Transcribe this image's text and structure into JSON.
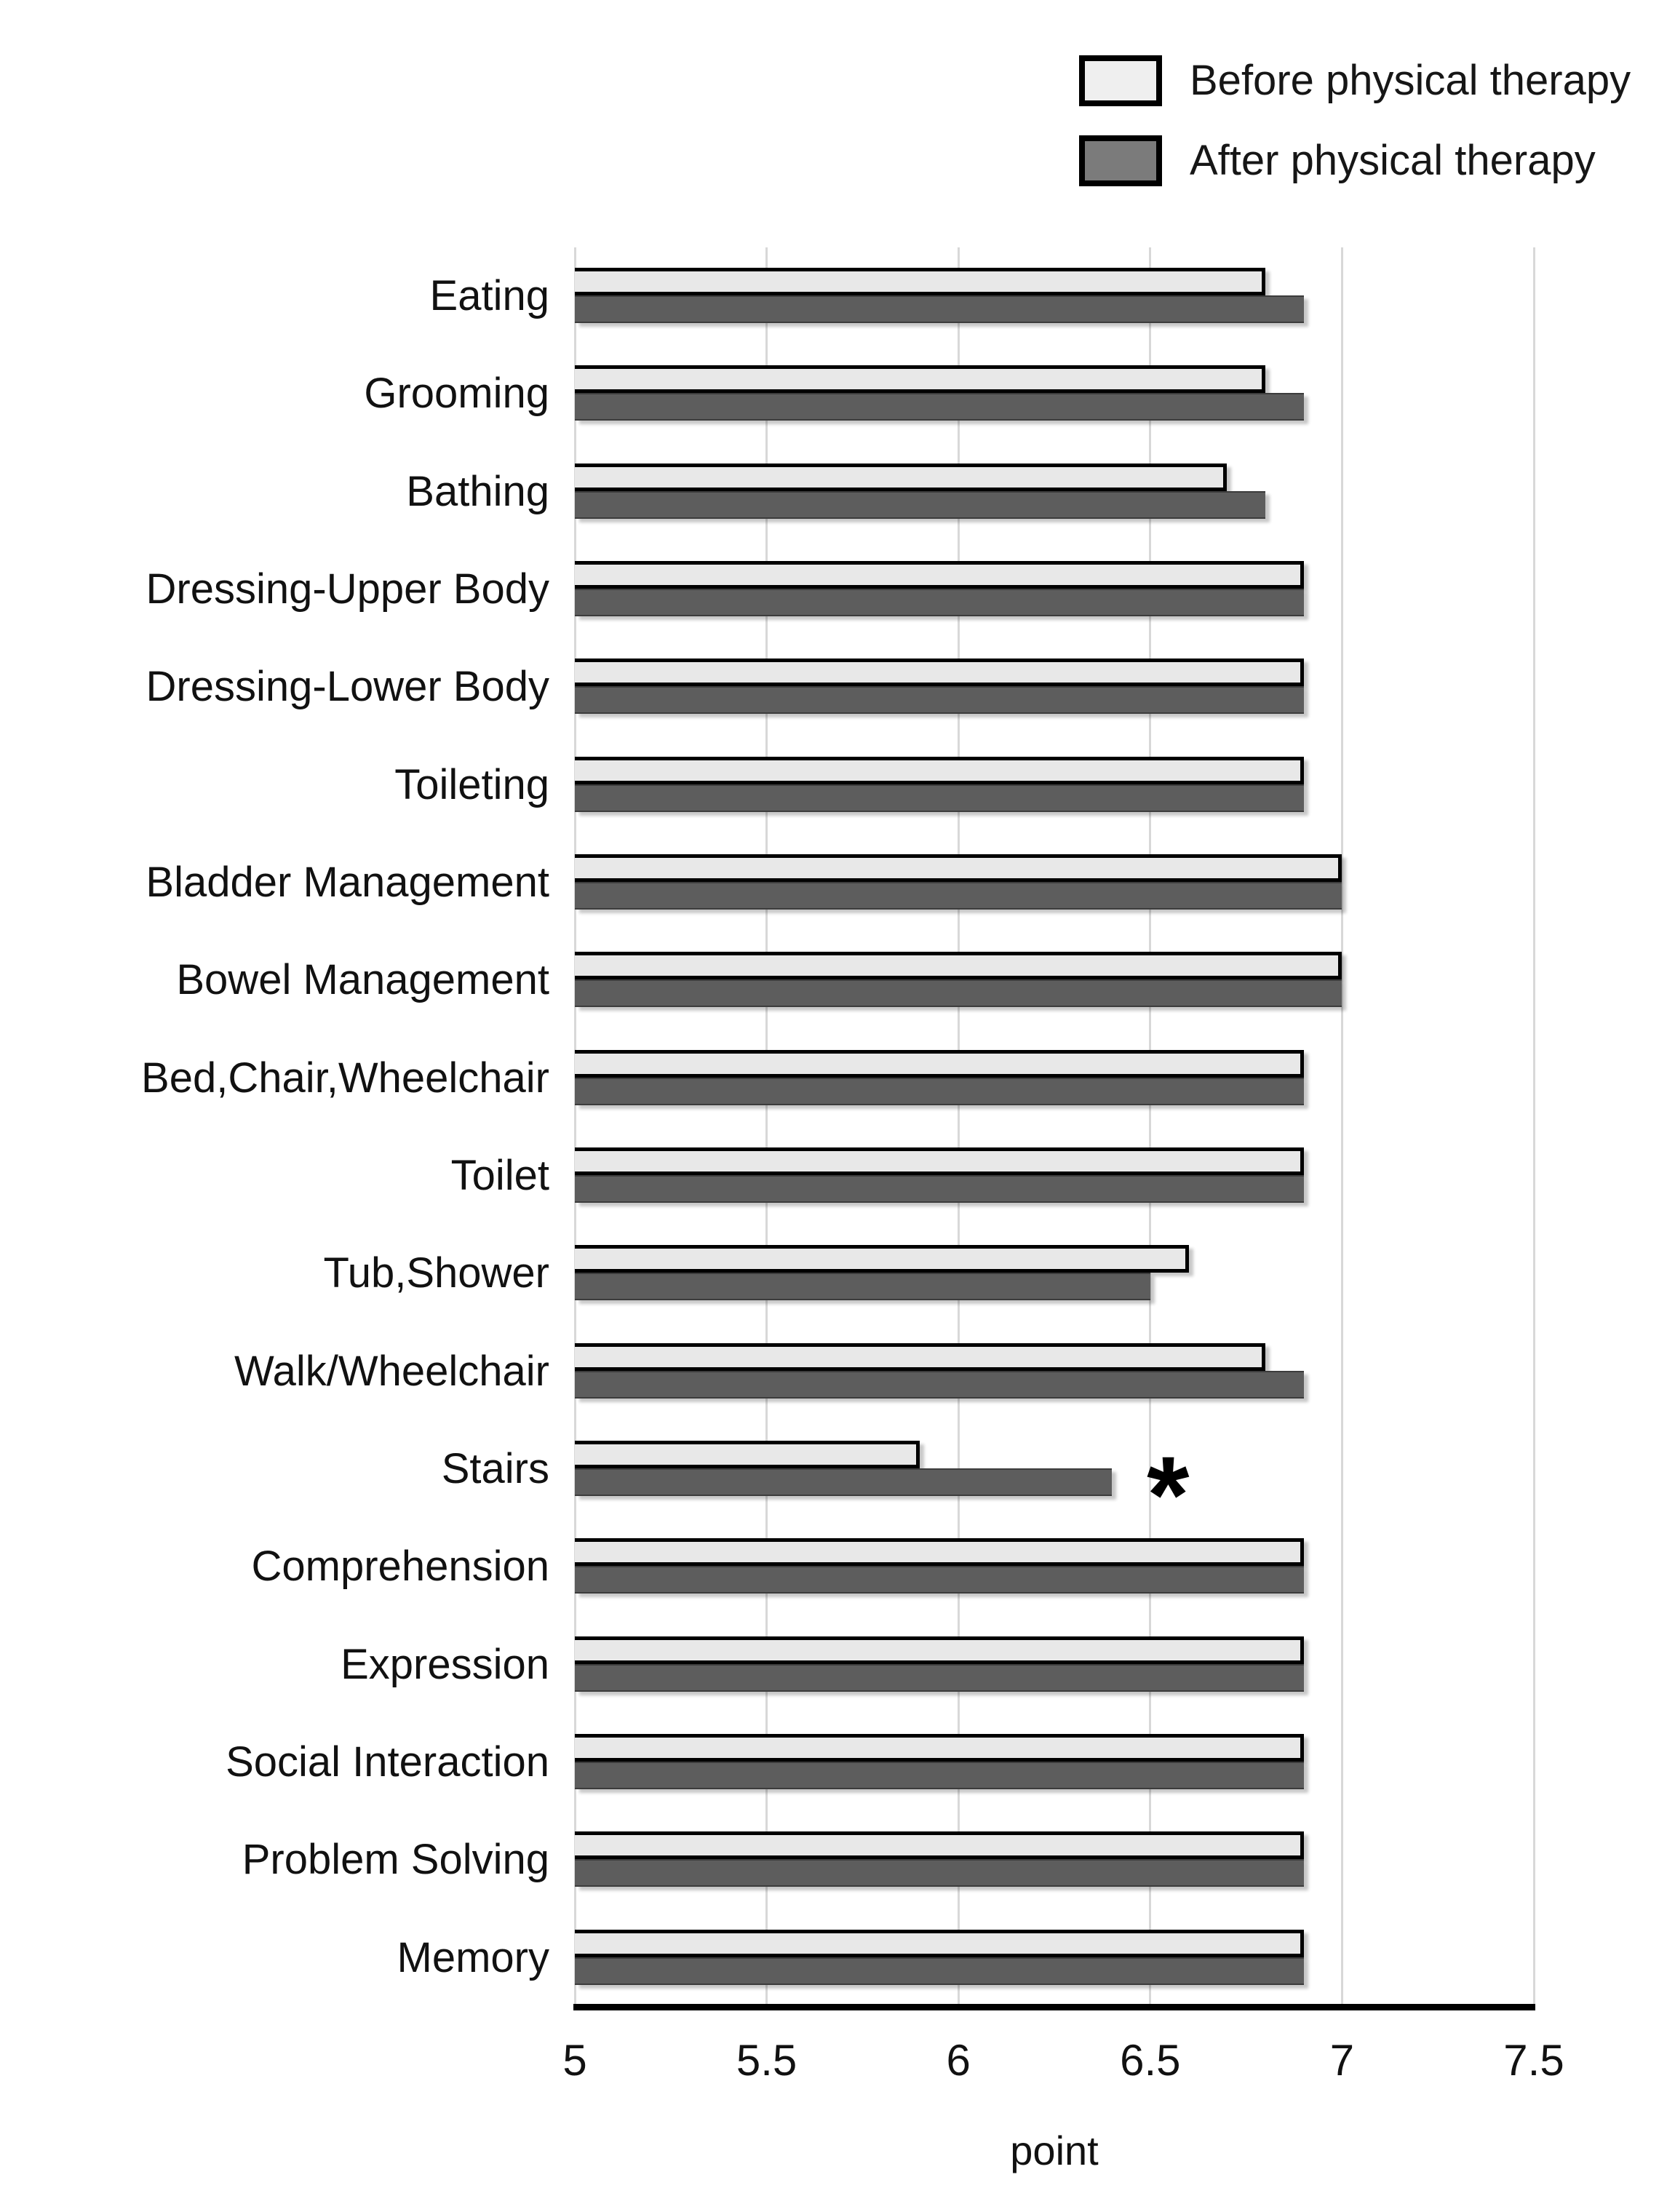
{
  "chart_data": {
    "type": "bar",
    "orientation": "horizontal",
    "title": "",
    "xlabel": "point",
    "xlim": [
      5,
      7.5
    ],
    "xtick_values": [
      5,
      5.5,
      6,
      6.5,
      7,
      7.5
    ],
    "xtick_labels": [
      "5",
      "5.5",
      "6",
      "6.5",
      "7",
      "7.5"
    ],
    "grid": true,
    "legend_position": "top-right",
    "categories": [
      "Eating",
      "Grooming",
      "Bathing",
      "Dressing-Upper Body",
      "Dressing-Lower Body",
      "Toileting",
      "Bladder Management",
      "Bowel Management",
      "Bed,Chair,Wheelchair",
      "Toilet",
      "Tub,Shower",
      "Walk/Wheelchair",
      "Stairs",
      "Comprehension",
      "Expression",
      "Social Interaction",
      "Problem Solving",
      "Memory"
    ],
    "series": [
      {
        "name": "Before physical therapy",
        "color": "#e8e8e8",
        "values": [
          6.8,
          6.8,
          6.7,
          6.9,
          6.9,
          6.9,
          7.0,
          7.0,
          6.9,
          6.9,
          6.6,
          6.8,
          5.9,
          6.9,
          6.9,
          6.9,
          6.9,
          6.9
        ]
      },
      {
        "name": "After physical therapy",
        "color": "#5d5d5d",
        "values": [
          6.9,
          6.9,
          6.8,
          6.9,
          6.9,
          6.9,
          7.0,
          7.0,
          6.9,
          6.9,
          6.5,
          6.9,
          6.4,
          6.9,
          6.9,
          6.9,
          6.9,
          6.9
        ]
      }
    ],
    "annotations": [
      {
        "text": "*",
        "category": "Stairs",
        "series": "After physical therapy",
        "value": 6.4
      }
    ]
  },
  "legend": {
    "before_label": "Before physical therapy",
    "after_label": "After physical therapy"
  },
  "axis": {
    "xlabel": "point"
  },
  "annotation": {
    "asterisk": "*"
  },
  "colors": {
    "before_fill": "#e8e8e8",
    "after_fill": "#5d5d5d",
    "legend_after_fill": "#7b7b7b",
    "gridline": "#d8d8d8",
    "axis": "#000000"
  }
}
